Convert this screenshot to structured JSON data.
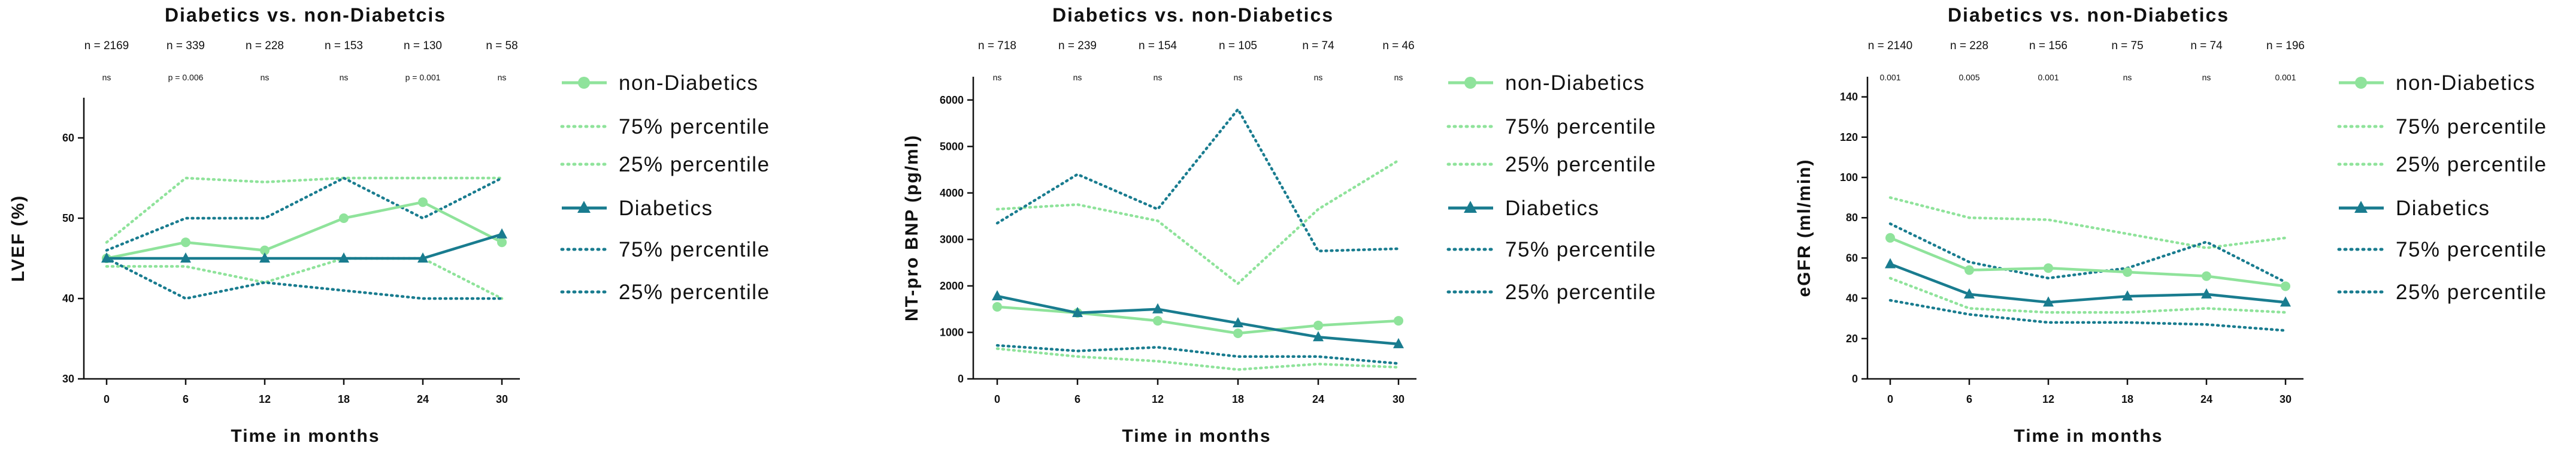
{
  "colors": {
    "non_diabetics": "#8fe39b",
    "diabetics": "#197c8f"
  },
  "chart_data": [
    {
      "type": "line",
      "title": "Diabetics vs. non-Diabetcis",
      "xlabel": "Time in months",
      "ylabel": "LVEF (%)",
      "x": [
        0,
        6,
        12,
        18,
        24,
        30
      ],
      "xticks": [
        "0",
        "6",
        "12",
        "18",
        "24",
        "30"
      ],
      "ylim": [
        30,
        65
      ],
      "yticks": [
        30,
        40,
        50,
        60
      ],
      "n_labels": [
        "n = 2169",
        "n = 339",
        "n = 228",
        "n = 153",
        "n = 130",
        "n = 58"
      ],
      "p_labels": [
        "ns",
        "p = 0.006",
        "ns",
        "ns",
        "p = 0.001",
        "ns"
      ],
      "legend": [
        "non-Diabetics",
        "75% percentile",
        "25% percentile",
        "Diabetics",
        "75% percentile",
        "25% percentile"
      ],
      "series": [
        {
          "name": "non-Diabetics",
          "group": "non_diabetics",
          "style": "solid",
          "marker": "circle",
          "values": [
            45,
            47,
            46,
            50,
            52,
            47
          ]
        },
        {
          "name": "75% percentile",
          "group": "non_diabetics",
          "style": "dotted",
          "values": [
            47,
            55,
            54.5,
            55,
            55,
            55
          ]
        },
        {
          "name": "25% percentile",
          "group": "non_diabetics",
          "style": "dotted",
          "values": [
            44,
            44,
            42,
            45,
            45,
            40
          ]
        },
        {
          "name": "Diabetics",
          "group": "diabetics",
          "style": "solid",
          "marker": "triangle",
          "values": [
            45,
            45,
            45,
            45,
            45,
            48
          ]
        },
        {
          "name": "75% percentile",
          "group": "diabetics",
          "style": "dotted",
          "values": [
            46,
            50,
            50,
            55,
            50,
            55
          ]
        },
        {
          "name": "25% percentile",
          "group": "diabetics",
          "style": "dotted",
          "values": [
            45,
            40,
            42,
            41,
            40,
            40
          ]
        }
      ]
    },
    {
      "type": "line",
      "title": "Diabetics vs. non-Diabetics",
      "xlabel": "Time in months",
      "ylabel": "NT-pro BNP (pg/ml)",
      "x": [
        0,
        6,
        12,
        18,
        24,
        30
      ],
      "xticks": [
        "0",
        "6",
        "12",
        "18",
        "24",
        "30"
      ],
      "ylim": [
        0,
        6500
      ],
      "yticks": [
        0,
        1000,
        2000,
        3000,
        4000,
        5000,
        6000
      ],
      "n_labels": [
        "n = 718",
        "n = 239",
        "n = 154",
        "n = 105",
        "n = 74",
        "n = 46"
      ],
      "p_labels": [
        "ns",
        "ns",
        "ns",
        "ns",
        "ns",
        "ns"
      ],
      "legend": [
        "non-Diabetics",
        "75% percentile",
        "25% percentile",
        "Diabetics",
        "75% percentile",
        "25% percentile"
      ],
      "series": [
        {
          "name": "non-Diabetics",
          "group": "non_diabetics",
          "style": "solid",
          "marker": "circle",
          "values": [
            1550,
            1420,
            1250,
            980,
            1150,
            1250
          ]
        },
        {
          "name": "75% percentile",
          "group": "non_diabetics",
          "style": "dotted",
          "values": [
            3650,
            3750,
            3400,
            2050,
            3650,
            4700
          ]
        },
        {
          "name": "25% percentile",
          "group": "non_diabetics",
          "style": "dotted",
          "values": [
            650,
            480,
            380,
            200,
            320,
            250
          ]
        },
        {
          "name": "Diabetics",
          "group": "diabetics",
          "style": "solid",
          "marker": "triangle",
          "values": [
            1780,
            1420,
            1500,
            1200,
            900,
            750
          ]
        },
        {
          "name": "75% percentile",
          "group": "diabetics",
          "style": "dotted",
          "values": [
            3350,
            4400,
            3650,
            5800,
            2750,
            2800
          ]
        },
        {
          "name": "25% percentile",
          "group": "diabetics",
          "style": "dotted",
          "values": [
            720,
            600,
            680,
            480,
            480,
            330
          ]
        }
      ]
    },
    {
      "type": "line",
      "title": "Diabetics vs. non-Diabetics",
      "xlabel": "Time in months",
      "ylabel": "eGFR (ml/min)",
      "x": [
        0,
        6,
        12,
        18,
        24,
        30
      ],
      "xticks": [
        "0",
        "6",
        "12",
        "18",
        "24",
        "30"
      ],
      "ylim": [
        0,
        150
      ],
      "yticks": [
        0,
        20,
        40,
        60,
        80,
        100,
        120,
        140
      ],
      "n_labels": [
        "n = 2140",
        "n = 228",
        "n = 156",
        "n = 75",
        "n = 74",
        "n = 196"
      ],
      "p_labels": [
        "0.001",
        "0.005",
        "0.001",
        "ns",
        "ns",
        "0.001"
      ],
      "legend": [
        "non-Diabetics",
        "75% percentile",
        "25% percentile",
        "Diabetics",
        "75% percentile",
        "25% percentile"
      ],
      "series": [
        {
          "name": "non-Diabetics",
          "group": "non_diabetics",
          "style": "solid",
          "marker": "circle",
          "values": [
            70,
            54,
            55,
            53,
            51,
            46
          ]
        },
        {
          "name": "75% percentile",
          "group": "non_diabetics",
          "style": "dotted",
          "values": [
            90,
            80,
            79,
            72,
            65,
            70
          ]
        },
        {
          "name": "25% percentile",
          "group": "non_diabetics",
          "style": "dotted",
          "values": [
            50,
            35,
            33,
            33,
            35,
            33
          ]
        },
        {
          "name": "Diabetics",
          "group": "diabetics",
          "style": "solid",
          "marker": "triangle",
          "values": [
            57,
            42,
            38,
            41,
            42,
            38
          ]
        },
        {
          "name": "75% percentile",
          "group": "diabetics",
          "style": "dotted",
          "values": [
            77,
            58,
            50,
            55,
            68,
            48
          ]
        },
        {
          "name": "25% percentile",
          "group": "diabetics",
          "style": "dotted",
          "values": [
            39,
            32,
            28,
            28,
            27,
            24
          ]
        }
      ]
    }
  ]
}
